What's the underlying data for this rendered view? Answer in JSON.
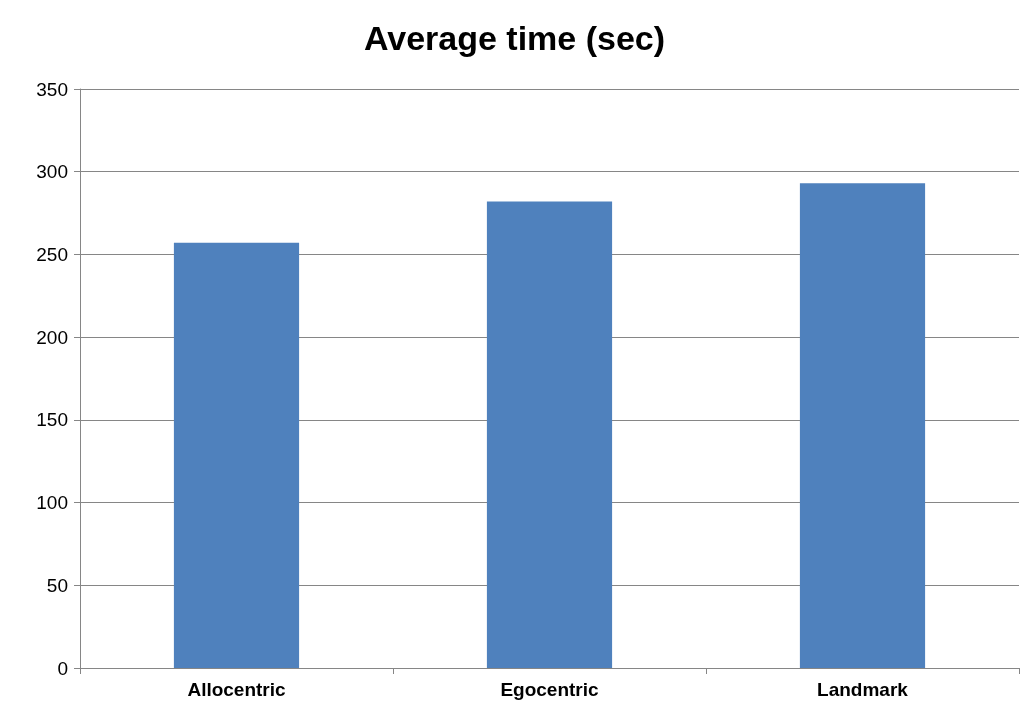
{
  "chart_data": {
    "type": "bar",
    "title": "Average time (sec)",
    "categories": [
      "Allocentric",
      "Egocentric",
      "Landmark"
    ],
    "values": [
      257,
      282,
      293
    ],
    "color": "#4f81bd",
    "ylim": [
      0,
      350
    ],
    "yticks": [
      0,
      50,
      100,
      150,
      200,
      250,
      300,
      350
    ],
    "grid": "y"
  }
}
